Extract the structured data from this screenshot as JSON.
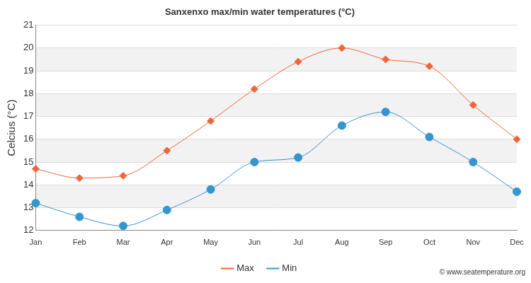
{
  "chart_data": {
    "type": "line",
    "title": "Sanxenxo max/min water temperatures (°C)",
    "y_label": "Celcius (°C)",
    "annotations": [
      "© www.seatemperature.org"
    ],
    "categories": [
      "Jan",
      "Feb",
      "Mar",
      "Apr",
      "May",
      "Jun",
      "Jul",
      "Aug",
      "Sep",
      "Oct",
      "Nov",
      "Dec"
    ],
    "series": [
      {
        "name": "Max",
        "color": "#f0643a",
        "marker": "diamond",
        "values": [
          14.7,
          14.3,
          14.4,
          15.5,
          16.8,
          18.2,
          19.4,
          20.0,
          19.5,
          19.2,
          17.5,
          16.0
        ]
      },
      {
        "name": "Min",
        "color": "#3595cf",
        "marker": "circle",
        "values": [
          13.2,
          12.6,
          12.2,
          12.9,
          13.8,
          15.0,
          15.2,
          16.6,
          17.2,
          16.1,
          15.0,
          13.7
        ]
      }
    ],
    "ylim": [
      12,
      21
    ],
    "yticks": [
      12,
      13,
      14,
      15,
      16,
      17,
      18,
      19,
      20,
      21
    ],
    "grid": true,
    "legend": "bottom"
  }
}
